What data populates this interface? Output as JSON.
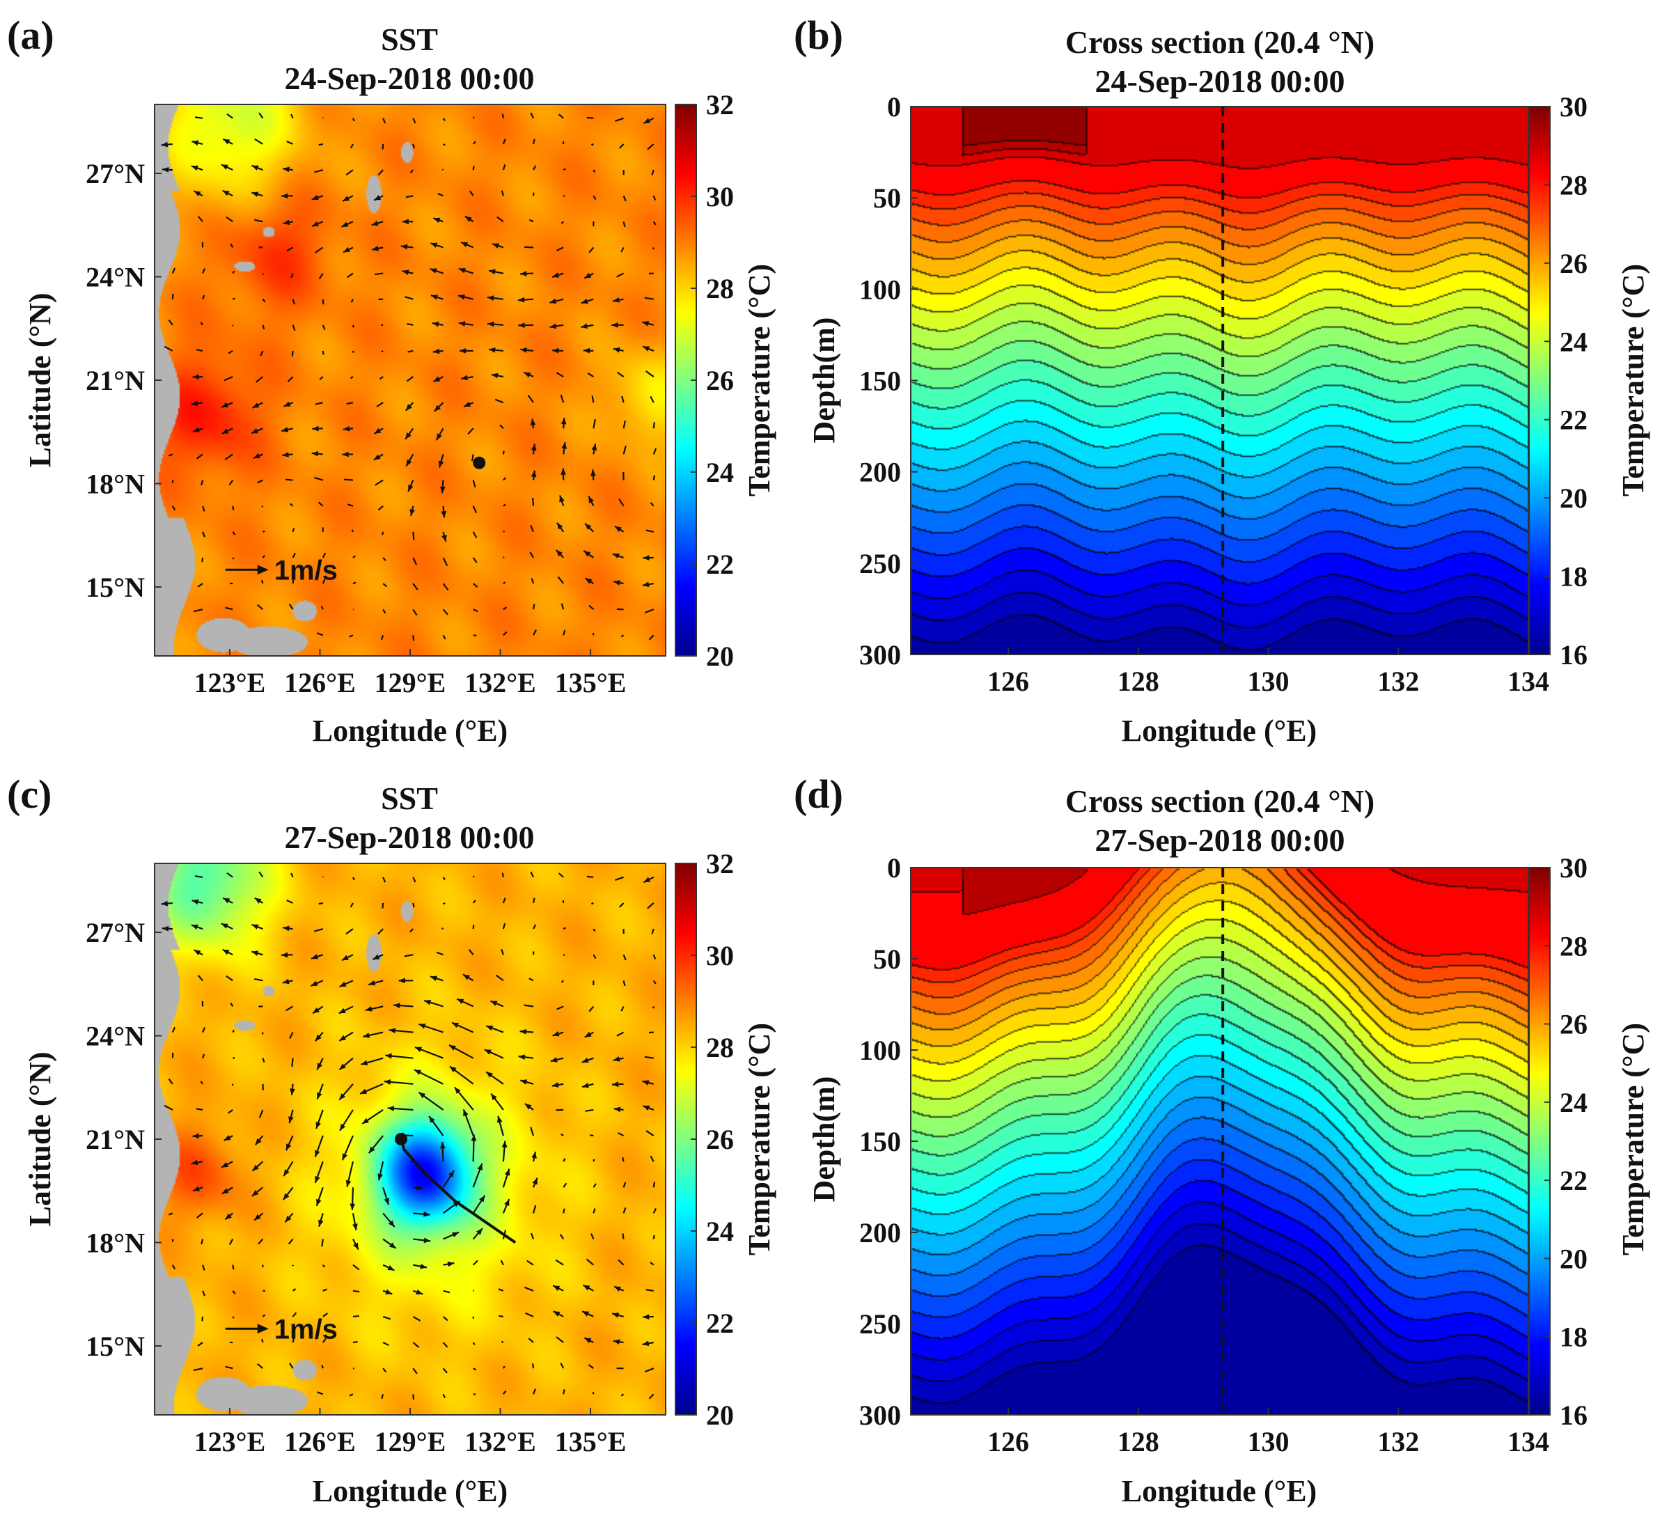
{
  "figure": {
    "colors": {
      "sst_scale": [
        "#00008f",
        "#0000ff",
        "#0080ff",
        "#00ffff",
        "#80ff80",
        "#ffff00",
        "#ff8000",
        "#ff0000",
        "#800000"
      ],
      "land": "#b4b4b4",
      "contour_line": "#1a1a1a",
      "track": "#111111"
    }
  },
  "chart_data": [
    {
      "id": "a",
      "type": "heatmap",
      "subtype": "sst_map_with_current_vectors",
      "panel_label": "(a)",
      "title": [
        "SST",
        "24-Sep-2018 00:00"
      ],
      "xlabel": "Longitude (°E)",
      "ylabel": "Latitude (°N)",
      "xlim": [
        120.5,
        137.5
      ],
      "ylim": [
        13,
        29
      ],
      "xticks": [
        123,
        126,
        129,
        132,
        135
      ],
      "xtick_labels": [
        "123°E",
        "126°E",
        "129°E",
        "132°E",
        "135°E"
      ],
      "yticks": [
        15,
        18,
        21,
        24,
        27
      ],
      "ytick_labels": [
        "15°N",
        "18°N",
        "21°N",
        "24°N",
        "27°N"
      ],
      "colorbar": {
        "label": "Temperature (°C)",
        "range": [
          20,
          32
        ],
        "ticks": [
          20,
          22,
          24,
          26,
          28,
          30,
          32
        ],
        "tick_labels": [
          "20",
          "22",
          "24",
          "26",
          "28",
          "30",
          "32"
        ]
      },
      "background_sst": 28.9,
      "features": [
        {
          "name": "warm coastal band",
          "lon": 122.2,
          "lat": 20,
          "temp_delta": 1.3,
          "sigma": 1.2
        },
        {
          "name": "warm patch",
          "lon": 124.5,
          "lat": 24.8,
          "temp_delta": 1.0,
          "sigma": 1.2
        },
        {
          "name": "cool north",
          "lon": 123,
          "lat": 28.5,
          "temp_delta": -2.0,
          "sigma": 1.6
        },
        {
          "name": "warm east",
          "lon": 137,
          "lat": 20.5,
          "temp_delta": -1.2,
          "sigma": 1.0
        }
      ],
      "eddy": {
        "lon": 131.3,
        "lat": 19.3,
        "strength": 0.9
      },
      "storm_position": {
        "lon": 131.3,
        "lat": 18.6
      },
      "track": [],
      "reference_vector": {
        "label": "1m/s",
        "lon": 124.2,
        "lat": 15.5
      }
    },
    {
      "id": "b",
      "type": "heatmap",
      "subtype": "temperature_cross_section",
      "panel_label": "(b)",
      "title": [
        "Cross section (20.4 °N)",
        "24-Sep-2018 00:00"
      ],
      "xlabel": "Longitude (°E)",
      "ylabel": "Depth(m)",
      "xlim": [
        124.5,
        134
      ],
      "ylim": [
        0,
        300
      ],
      "xticks": [
        126,
        128,
        130,
        132,
        134
      ],
      "xtick_labels": [
        "126",
        "128",
        "130",
        "132",
        "134"
      ],
      "yticks": [
        0,
        50,
        100,
        150,
        200,
        250,
        300
      ],
      "ytick_labels": [
        "0",
        "50",
        "100",
        "150",
        "200",
        "250",
        "300"
      ],
      "colorbar": {
        "label": "Temperature (°C)",
        "range": [
          16,
          30
        ],
        "ticks": [
          16,
          18,
          20,
          22,
          24,
          26,
          28,
          30
        ],
        "tick_labels": [
          "16",
          "18",
          "20",
          "22",
          "24",
          "26",
          "28",
          "30"
        ]
      },
      "surface_temp": 28.8,
      "mixed_layer_depth_m": 40,
      "deep_temp_300m": 16.0,
      "upwelling": {
        "center_lon": 129.3,
        "amplitude_m": 0,
        "width_lon": 1.0
      },
      "storm_longitude": 129.3
    },
    {
      "id": "c",
      "type": "heatmap",
      "subtype": "sst_map_with_current_vectors",
      "panel_label": "(c)",
      "title": [
        "SST",
        "27-Sep-2018 00:00"
      ],
      "xlabel": "Longitude (°E)",
      "ylabel": "Latitude (°N)",
      "xlim": [
        120.5,
        137.5
      ],
      "ylim": [
        13,
        29
      ],
      "xticks": [
        123,
        126,
        129,
        132,
        135
      ],
      "xtick_labels": [
        "123°E",
        "126°E",
        "129°E",
        "132°E",
        "135°E"
      ],
      "yticks": [
        15,
        18,
        21,
        24,
        27
      ],
      "ytick_labels": [
        "15°N",
        "18°N",
        "21°N",
        "24°N",
        "27°N"
      ],
      "colorbar": {
        "label": "Temperature (°C)",
        "range": [
          20,
          32
        ],
        "ticks": [
          20,
          22,
          24,
          26,
          28,
          30,
          32
        ],
        "tick_labels": [
          "20",
          "22",
          "24",
          "26",
          "28",
          "30",
          "32"
        ]
      },
      "background_sst": 28.4,
      "features": [
        {
          "name": "cold wake",
          "lon": 129.5,
          "lat": 20.0,
          "temp_delta": -5.6,
          "sigma": 1.1
        },
        {
          "name": "wake skirt",
          "lon": 129.8,
          "lat": 19.6,
          "temp_delta": -1.4,
          "sigma": 2.6
        },
        {
          "name": "warm coastal band",
          "lon": 122.0,
          "lat": 20,
          "temp_delta": 1.2,
          "sigma": 1.0
        },
        {
          "name": "cool north",
          "lon": 122.2,
          "lat": 28.5,
          "temp_delta": -3.0,
          "sigma": 1.4
        }
      ],
      "eddy": {
        "lon": 129.3,
        "lat": 20.3,
        "strength": 1.8
      },
      "storm_position": {
        "lon": 128.7,
        "lat": 21.0
      },
      "track": [
        [
          132.5,
          18.0
        ],
        [
          130.5,
          19.2
        ],
        [
          129.5,
          20.0
        ],
        [
          128.8,
          20.7
        ],
        [
          128.7,
          21.0
        ]
      ],
      "reference_vector": {
        "label": "1m/s",
        "lon": 124.2,
        "lat": 15.5
      }
    },
    {
      "id": "d",
      "type": "heatmap",
      "subtype": "temperature_cross_section",
      "panel_label": "(d)",
      "title": [
        "Cross section (20.4 °N)",
        "27-Sep-2018 00:00"
      ],
      "xlabel": "Longitude (°E)",
      "ylabel": "Depth(m)",
      "xlim": [
        124.5,
        134
      ],
      "ylim": [
        0,
        300
      ],
      "xticks": [
        126,
        128,
        130,
        132,
        134
      ],
      "xtick_labels": [
        "126",
        "128",
        "130",
        "132",
        "134"
      ],
      "yticks": [
        0,
        50,
        100,
        150,
        200,
        250,
        300
      ],
      "ytick_labels": [
        "0",
        "50",
        "100",
        "150",
        "200",
        "250",
        "300"
      ],
      "colorbar": {
        "label": "Temperature (°C)",
        "range": [
          16,
          30
        ],
        "ticks": [
          16,
          18,
          20,
          22,
          24,
          26,
          28,
          30
        ],
        "tick_labels": [
          "16",
          "18",
          "20",
          "22",
          "24",
          "26",
          "28",
          "30"
        ]
      },
      "surface_temp": 28.6,
      "mixed_layer_depth_m": 50,
      "deep_temp_300m": 16.0,
      "upwelling": {
        "center_lon": 129.3,
        "amplitude_m": 85,
        "width_lon": 1.3
      },
      "storm_longitude": 129.3
    }
  ]
}
